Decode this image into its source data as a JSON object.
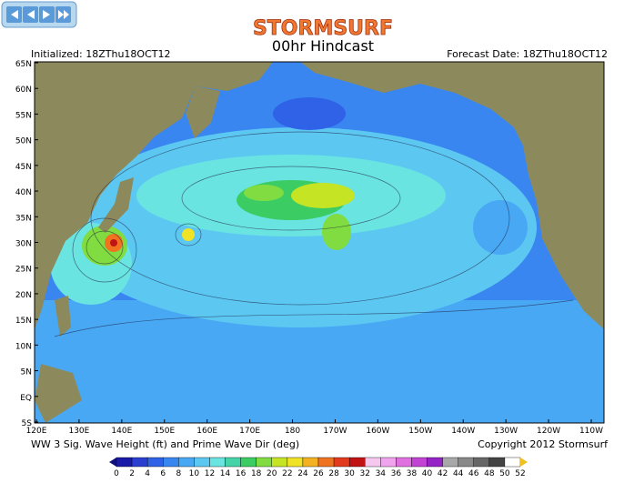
{
  "header": {
    "brand": "STORMSURF",
    "title": "00hr Hindcast",
    "initialized": "Initialized: 18ZThu18OCT12",
    "forecast_date": "Forecast Date: 18ZThu18OCT12"
  },
  "map": {
    "lat_labels": [
      "65N",
      "60N",
      "55N",
      "50N",
      "45N",
      "40N",
      "35N",
      "30N",
      "25N",
      "20N",
      "15N",
      "10N",
      "5N",
      "EQ",
      "5S"
    ],
    "lon_labels": [
      "120E",
      "130E",
      "140E",
      "150E",
      "160E",
      "170E",
      "180",
      "170W",
      "160W",
      "150W",
      "140W",
      "130W",
      "120W",
      "110W"
    ]
  },
  "footer": {
    "caption": "WW 3 Sig. Wave Height (ft) and Prime Wave Dir (deg)",
    "copyright": "Copyright 2012 Stormsurf"
  },
  "legend": {
    "labels": [
      0,
      2,
      4,
      6,
      8,
      10,
      12,
      14,
      16,
      18,
      20,
      22,
      24,
      26,
      28,
      30,
      32,
      34,
      36,
      38,
      40,
      42,
      44,
      46,
      48,
      50,
      52
    ],
    "colors": [
      "#1a1aa8",
      "#2a3ed0",
      "#2f62e6",
      "#3a86f0",
      "#48a8f4",
      "#5cc8f2",
      "#6ae4e0",
      "#44d4a8",
      "#3ccc64",
      "#80dc40",
      "#c4e424",
      "#f0e224",
      "#f2b222",
      "#f07420",
      "#e23a1e",
      "#c01414",
      "#f6c8f0",
      "#f0a4ee",
      "#e070e0",
      "#c244d4",
      "#9424c4",
      "#a8a8a8",
      "#888888",
      "#666666",
      "#444444",
      "#ffffff"
    ]
  }
}
